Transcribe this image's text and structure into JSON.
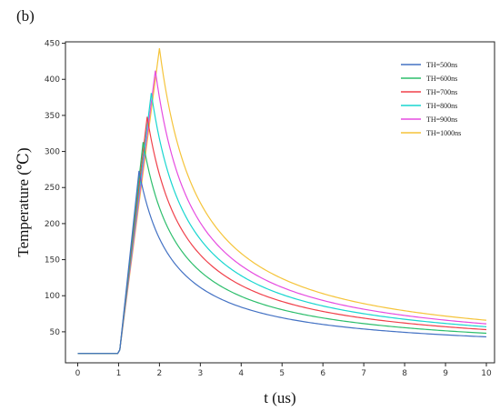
{
  "panel_label": "(b)",
  "chart_data": {
    "type": "line",
    "title": "",
    "xlabel": "t (us)",
    "ylabel": "Temperature (℃)",
    "xlim": [
      -0.3,
      10.2
    ],
    "ylim": [
      7,
      452
    ],
    "xticks": [
      0,
      1,
      2,
      3,
      4,
      5,
      6,
      7,
      8,
      9,
      10
    ],
    "yticks": [
      50,
      100,
      150,
      200,
      250,
      300,
      350,
      400,
      450
    ],
    "grid": false,
    "legend_position": "top-right",
    "ambient": 20,
    "rise_start": 0.98,
    "series": [
      {
        "name": "TH=500ns",
        "color": "#4472C4",
        "peak_t": 1.5,
        "peak_T": 273,
        "end_T": 43
      },
      {
        "name": "TH=600ns",
        "color": "#2DBE6C",
        "peak_t": 1.6,
        "peak_T": 313,
        "end_T": 48
      },
      {
        "name": "TH=700ns",
        "color": "#F0404A",
        "peak_t": 1.7,
        "peak_T": 348,
        "end_T": 53
      },
      {
        "name": "TH=800ns",
        "color": "#19D6D0",
        "peak_t": 1.8,
        "peak_T": 381,
        "end_T": 57
      },
      {
        "name": "TH=900ns",
        "color": "#E64CE0",
        "peak_t": 1.9,
        "peak_T": 412,
        "end_T": 61
      },
      {
        "name": "TH=1000ns",
        "color": "#F5C43A",
        "peak_t": 2.0,
        "peak_T": 443,
        "end_T": 66
      }
    ]
  }
}
